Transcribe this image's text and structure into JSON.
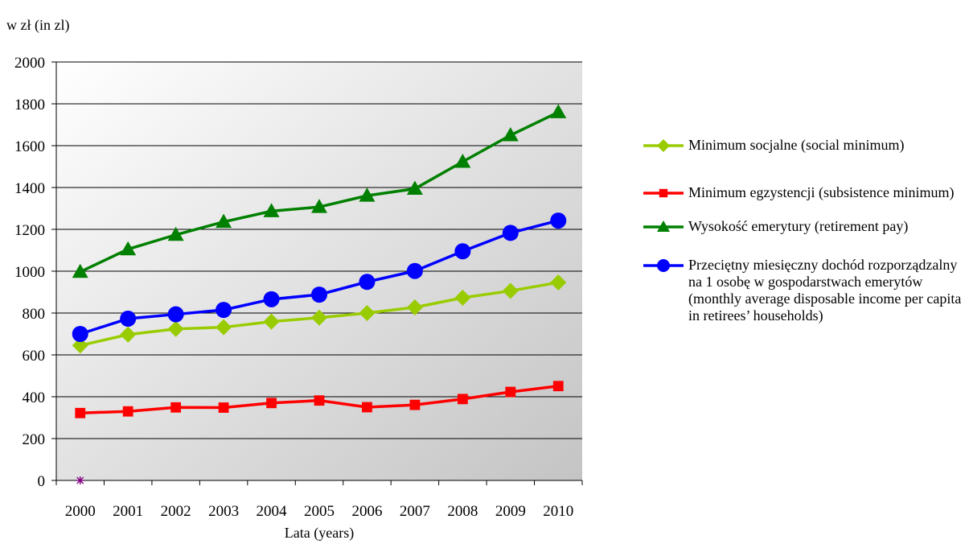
{
  "chart_data": {
    "type": "line",
    "unit_label": "w zł (in zl)",
    "xlabel": "Lata (years)",
    "ylabel": "",
    "title": "",
    "ylim": [
      0,
      2000
    ],
    "y_ticks": [
      "0",
      "200",
      "400",
      "600",
      "800",
      "1000",
      "1200",
      "1400",
      "1600",
      "1800",
      "2000"
    ],
    "categories": [
      "2000",
      "2001",
      "2002",
      "2003",
      "2004",
      "2005",
      "2006",
      "2007",
      "2008",
      "2009",
      "2010"
    ],
    "grid": "horizontal",
    "legend_position": "right",
    "series": [
      {
        "name": "Minimum socjalne (social minimum)",
        "color": "#99cc00",
        "marker": "diamond",
        "values": [
          645,
          697,
          724,
          732,
          759,
          778,
          800,
          827,
          873,
          906,
          946
        ]
      },
      {
        "name": "Minimum egzystencji (subsistence minimum)",
        "color": "#ff0000",
        "marker": "square",
        "values": [
          322,
          330,
          349,
          348,
          370,
          382,
          350,
          361,
          389,
          423,
          451
        ]
      },
      {
        "name": "Wysokość  emerytury (retirement pay)",
        "color": "#008000",
        "marker": "triangle",
        "values": [
          997,
          1105,
          1174,
          1236,
          1287,
          1307,
          1361,
          1394,
          1523,
          1650,
          1760
        ]
      },
      {
        "name": "Przeciętny miesięczny dochód rozporządzalny  na 1 osobę w gospodarstwach emerytów (monthly average disposable income per capita in retirees’ households)",
        "color": "#0000ff",
        "marker": "circle",
        "values": [
          700,
          773,
          794,
          815,
          866,
          888,
          949,
          1001,
          1095,
          1183,
          1242
        ]
      }
    ],
    "annotations": [
      {
        "type": "asterisk-marker",
        "x": "2000",
        "y": 0,
        "color": "#800080"
      }
    ]
  }
}
